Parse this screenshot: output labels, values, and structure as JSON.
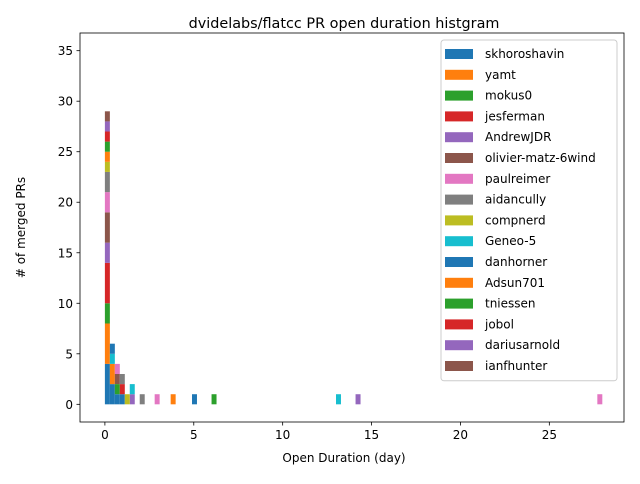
{
  "chart_data": {
    "type": "bar",
    "subtype": "stacked-histogram",
    "title": "dvidelabs/flatcc PR open duration histgram",
    "xlabel": "Open Duration (day)",
    "ylabel": "# of merged PRs",
    "xlim": [
      -1.4,
      29.2
    ],
    "ylim": [
      -1.75,
      36.75
    ],
    "x_ticks": [
      0,
      5,
      10,
      15,
      20,
      25
    ],
    "y_ticks": [
      0,
      5,
      10,
      15,
      20,
      25,
      30,
      35
    ],
    "grid": false,
    "legend_position": "upper right",
    "series": [
      {
        "name": "skhoroshavin",
        "color": "#1f77b4",
        "bins": [
          {
            "x0": 0.0,
            "x1": 0.28,
            "count": 4
          },
          {
            "x0": 0.28,
            "x1": 0.56,
            "count": 2
          },
          {
            "x0": 0.56,
            "x1": 0.84,
            "count": 1
          },
          {
            "x0": 0.84,
            "x1": 1.12,
            "count": 1
          },
          {
            "x0": 4.9,
            "x1": 5.18,
            "count": 1
          }
        ]
      },
      {
        "name": "yamt",
        "color": "#ff7f0e",
        "bins": [
          {
            "x0": 0.0,
            "x1": 0.28,
            "count": 4
          },
          {
            "x0": 0.28,
            "x1": 0.56,
            "count": 2
          },
          {
            "x0": 3.7,
            "x1": 3.98,
            "count": 1
          }
        ]
      },
      {
        "name": "mokus0",
        "color": "#2ca02c",
        "bins": [
          {
            "x0": 0.0,
            "x1": 0.28,
            "count": 2
          },
          {
            "x0": 0.56,
            "x1": 0.84,
            "count": 1
          },
          {
            "x0": 6.0,
            "x1": 6.28,
            "count": 1
          }
        ]
      },
      {
        "name": "jesferman",
        "color": "#d62728",
        "bins": [
          {
            "x0": 0.0,
            "x1": 0.28,
            "count": 4
          },
          {
            "x0": 0.84,
            "x1": 1.12,
            "count": 1
          }
        ]
      },
      {
        "name": "AndrewJDR",
        "color": "#9467bd",
        "bins": [
          {
            "x0": 0.0,
            "x1": 0.28,
            "count": 2
          },
          {
            "x0": 1.4,
            "x1": 1.68,
            "count": 1
          },
          {
            "x0": 14.1,
            "x1": 14.38,
            "count": 1
          }
        ]
      },
      {
        "name": "olivier-matz-6wind",
        "color": "#8c564b",
        "bins": [
          {
            "x0": 0.0,
            "x1": 0.28,
            "count": 3
          },
          {
            "x0": 0.56,
            "x1": 0.84,
            "count": 1
          }
        ]
      },
      {
        "name": "paulreimer",
        "color": "#e377c2",
        "bins": [
          {
            "x0": 0.0,
            "x1": 0.28,
            "count": 2
          },
          {
            "x0": 0.56,
            "x1": 0.84,
            "count": 1
          },
          {
            "x0": 2.8,
            "x1": 3.08,
            "count": 1
          },
          {
            "x0": 27.7,
            "x1": 27.98,
            "count": 1
          }
        ]
      },
      {
        "name": "aidancully",
        "color": "#7f7f7f",
        "bins": [
          {
            "x0": 0.0,
            "x1": 0.28,
            "count": 2
          },
          {
            "x0": 0.84,
            "x1": 1.12,
            "count": 1
          },
          {
            "x0": 1.96,
            "x1": 2.24,
            "count": 1
          }
        ]
      },
      {
        "name": "compnerd",
        "color": "#bcbd22",
        "bins": [
          {
            "x0": 0.0,
            "x1": 0.28,
            "count": 1
          },
          {
            "x0": 1.12,
            "x1": 1.4,
            "count": 1
          }
        ]
      },
      {
        "name": "Geneo-5",
        "color": "#17becf",
        "bins": [
          {
            "x0": 0.28,
            "x1": 0.56,
            "count": 1
          },
          {
            "x0": 1.4,
            "x1": 1.68,
            "count": 1
          },
          {
            "x0": 13.0,
            "x1": 13.28,
            "count": 1
          }
        ]
      },
      {
        "name": "danhorner",
        "color": "#1f77b4",
        "bins": [
          {
            "x0": 0.28,
            "x1": 0.56,
            "count": 1
          }
        ]
      },
      {
        "name": "Adsun701",
        "color": "#ff7f0e",
        "bins": [
          {
            "x0": 0.0,
            "x1": 0.28,
            "count": 1
          }
        ]
      },
      {
        "name": "tniessen",
        "color": "#2ca02c",
        "bins": [
          {
            "x0": 0.0,
            "x1": 0.28,
            "count": 1
          }
        ]
      },
      {
        "name": "jobol",
        "color": "#d62728",
        "bins": [
          {
            "x0": 0.0,
            "x1": 0.28,
            "count": 1
          }
        ]
      },
      {
        "name": "dariusarnold",
        "color": "#9467bd",
        "bins": [
          {
            "x0": 0.0,
            "x1": 0.28,
            "count": 1
          }
        ]
      },
      {
        "name": "ianfhunter",
        "color": "#8c564b",
        "bins": [
          {
            "x0": 0.0,
            "x1": 0.28,
            "count": 1
          }
        ]
      }
    ]
  }
}
